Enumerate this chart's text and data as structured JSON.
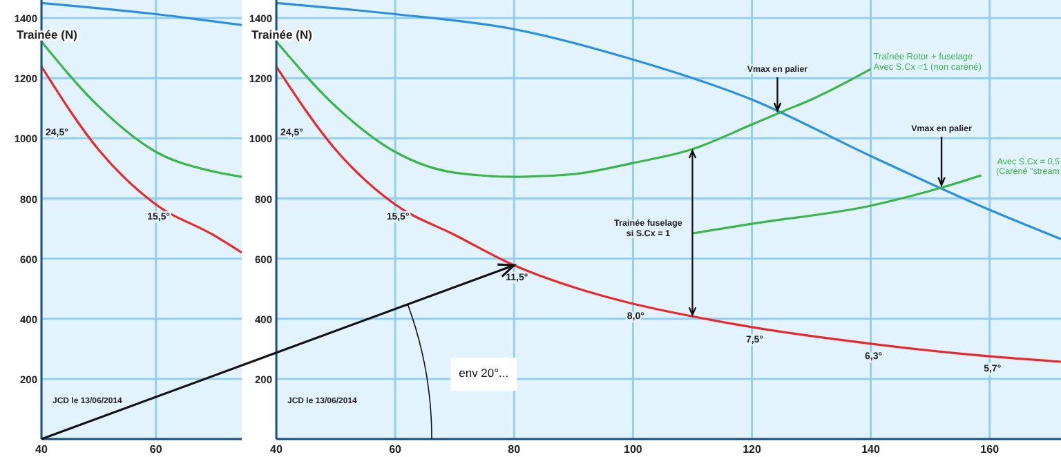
{
  "chart_data": [
    {
      "type": "line",
      "ylabel": "Trainée (N)",
      "xlim": [
        40,
        75
      ],
      "xticks": [
        40,
        60
      ],
      "ylim": [
        0,
        1460
      ],
      "yticks": [
        200,
        400,
        600,
        800,
        1000,
        1200,
        1400
      ],
      "grid": true,
      "line_style": "solid",
      "series": [
        {
          "color": "#2a8fe0",
          "x": [
            40,
            60,
            75
          ],
          "values": [
            1450,
            1413,
            1377
          ]
        },
        {
          "color": "#3ab54a",
          "x": [
            40,
            50,
            60,
            70,
            75
          ],
          "values": [
            1322,
            1106,
            955,
            890,
            872
          ]
        },
        {
          "color": "#e8282a",
          "x": [
            40,
            50,
            60,
            70,
            75
          ],
          "values": [
            1239,
            962,
            780,
            679,
            620
          ]
        }
      ],
      "annotations": [
        "24,5°",
        {
          "text": "15,5°",
          "x": 60,
          "y": 780
        },
        "JCD le 13/06/2014"
      ]
    },
    {
      "type": "line",
      "ylabel": "Trainée (N)",
      "xlim": [
        40,
        172
      ],
      "xticks": [
        40,
        60,
        80,
        100,
        120,
        140,
        160
      ],
      "ylim": [
        0,
        1460
      ],
      "yticks": [
        200,
        400,
        600,
        800,
        1000,
        1200,
        1400
      ],
      "grid": true,
      "line_style": "solid",
      "series": [
        {
          "color": "#2a8fe0",
          "x": [
            40,
            60,
            80,
            100,
            120,
            140,
            160,
            172
          ],
          "values": [
            1450,
            1413,
            1363,
            1262,
            1129,
            941,
            762,
            665
          ]
        },
        {
          "name": "Traînée Rotor + fuselage\nAvec S.Cx =1  (non caréné)",
          "color": "#3ab54a",
          "x": [
            40,
            50,
            60,
            70,
            80,
            90,
            100,
            110,
            120,
            125,
            130,
            140
          ],
          "values": [
            1322,
            1106,
            955,
            886,
            872,
            881,
            918,
            964,
            1046,
            1088,
            1129,
            1230
          ]
        },
        {
          "color": "#e8282a",
          "x": [
            40,
            50,
            60,
            70,
            80,
            90,
            100,
            110,
            120,
            140,
            160,
            172
          ],
          "values": [
            1239,
            962,
            780,
            679,
            578,
            505,
            450,
            408,
            372,
            317,
            275,
            257
          ]
        },
        {
          "name": "Avec S.Cx = 0,5\n(Caréné \"stream",
          "color": "#3ab54a",
          "x": [
            110,
            120,
            140,
            152.6,
            158.6
          ],
          "values": [
            684,
            716,
            776,
            840,
            877
          ]
        }
      ],
      "annotations": [
        "24,5°",
        {
          "text": "15,5°",
          "x": 60,
          "y": 780
        },
        {
          "text": "11,5°",
          "x": 80,
          "y": 578
        },
        {
          "text": "8,0°",
          "x": 100,
          "y": 450
        },
        {
          "text": "7,5°",
          "x": 120,
          "y": 372
        },
        {
          "text": "6,3°",
          "x": 140,
          "y": 317
        },
        {
          "text": "5,7°",
          "x": 160,
          "y": 275
        },
        {
          "text": "Vmax en palier",
          "x": 125,
          "y": 1088
        },
        {
          "text": "Vmax en palier",
          "x": 152.6,
          "y": 840
        },
        {
          "text": "Trainée fuselage\nsi S.Cx = 1",
          "x": 110,
          "y": 690
        },
        "env 20°...",
        "JCD le 13/06/2014"
      ]
    }
  ]
}
